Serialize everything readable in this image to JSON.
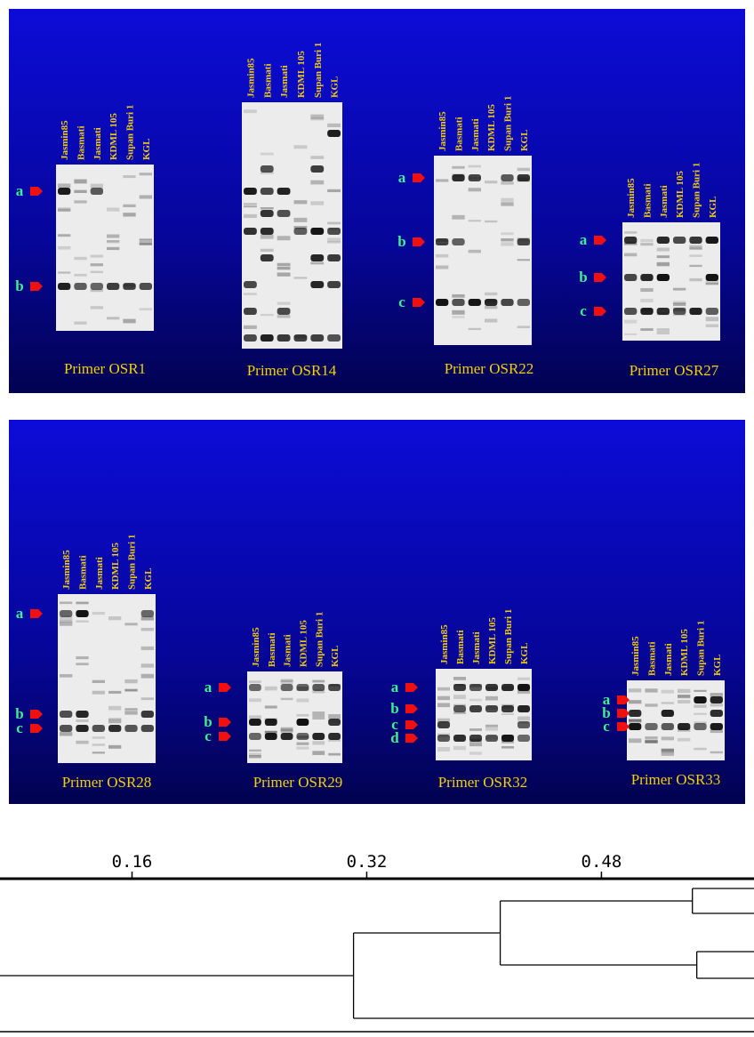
{
  "panels": [
    {
      "gels": [
        {
          "lanes": [
            "Jasmin85",
            "Basmati",
            "Jasmati",
            "KDML 105",
            "Supan Buri 1",
            "KGL"
          ],
          "markers": [
            "a",
            "b"
          ],
          "caption": "Primer OSR1"
        },
        {
          "lanes": [
            "Jasmin85",
            "Basmati",
            "Jasmati",
            "KDML 105",
            "Supan Buri 1",
            "KGL"
          ],
          "markers": [],
          "caption": "Primer OSR14"
        },
        {
          "lanes": [
            "Jasmin85",
            "Basmati",
            "Jasmati",
            "KDML 105",
            "Supan Buri 1",
            "KGL"
          ],
          "markers": [
            "a",
            "b",
            "c"
          ],
          "caption": "Primer OSR22"
        },
        {
          "lanes": [
            "Jasmin85",
            "Basmati",
            "Jasmati",
            "KDML 105",
            "Supan Buri 1",
            "KGL"
          ],
          "markers": [
            "a",
            "b",
            "c"
          ],
          "caption": "Primer OSR27"
        }
      ]
    },
    {
      "gels": [
        {
          "lanes": [
            "Jasmin85",
            "Basmati",
            "Jasmati",
            "KDML 105",
            "Supan Buri 1",
            "KGL"
          ],
          "markers": [
            "a",
            "b",
            "c"
          ],
          "caption": "Primer OSR28"
        },
        {
          "lanes": [
            "Jasmin85",
            "Basmati",
            "Jasmati",
            "KDML 105",
            "Supan Buri 1",
            "KGL"
          ],
          "markers": [
            "a",
            "b",
            "c"
          ],
          "caption": "Primer OSR29"
        },
        {
          "lanes": [
            "Jasmin85",
            "Basmati",
            "Jasmati",
            "KDML 105",
            "Supan Buri 1",
            "KGL"
          ],
          "markers": [
            "a",
            "b",
            "c",
            "d"
          ],
          "caption": "Primer OSR32"
        },
        {
          "lanes": [
            "Jasmin85",
            "Basmati",
            "Jasmati",
            "KDML 105",
            "Supan Buri 1",
            "KGL"
          ],
          "markers": [
            "a",
            "b",
            "c"
          ],
          "caption": "Primer OSR33"
        }
      ]
    }
  ],
  "dendrogram": {
    "xlim": [
      0.07,
      0.584
    ],
    "xticks": [
      0.16,
      0.32,
      0.48
    ],
    "merges": [
      0.542,
      0.545,
      0.411,
      0.311
    ]
  }
}
